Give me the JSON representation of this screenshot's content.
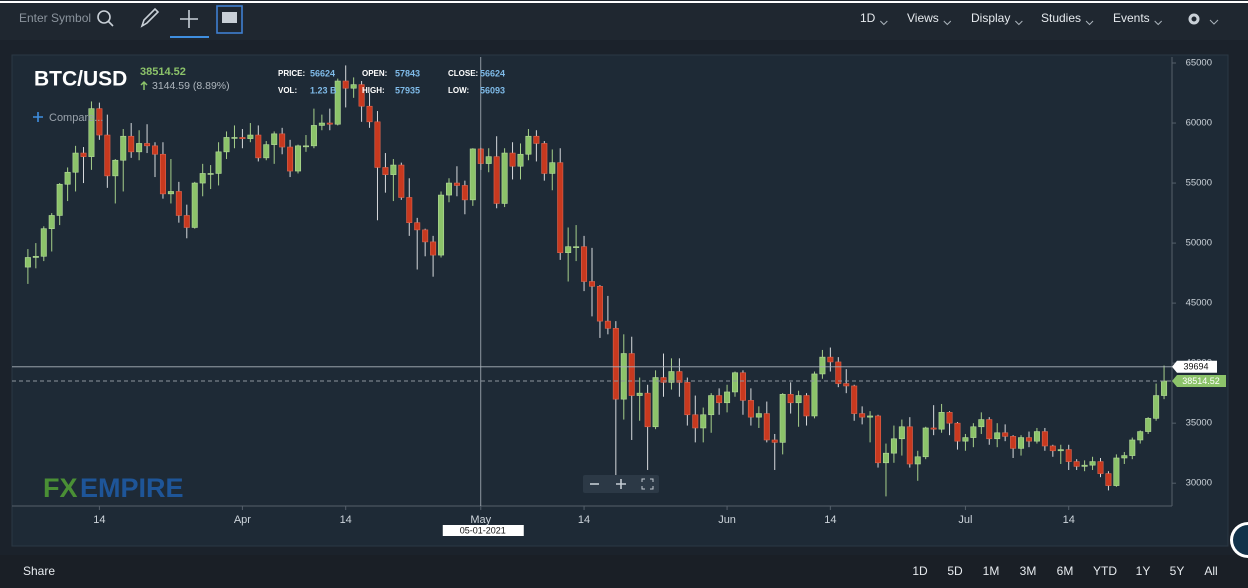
{
  "toolbar": {
    "search_placeholder": "Enter Symbol",
    "menus": [
      "1D",
      "Views",
      "Display",
      "Studies",
      "Events"
    ]
  },
  "chart_data": {
    "type": "candlestick",
    "title": "BTC/USD",
    "change": "3144.59 (8.89%)",
    "compare": "Compare...",
    "watermark": {
      "fx": "FX",
      "empire": "EMPIRE"
    },
    "readout_labels": {
      "price": "PRICE:",
      "vol": "VOL:",
      "open": "OPEN:",
      "high": "HIGH:",
      "close": "CLOSE:",
      "low": "LOW:"
    },
    "crosshair": {
      "x": "05-01-2021",
      "y": 39694,
      "volume": "1.23 B"
    },
    "colors": {
      "up": "#8cc36a",
      "down": "#c8391f",
      "last_price": "#8cc36a"
    },
    "x": [
      "03-05-2021",
      "03-06-2021",
      "03-07-2021",
      "03-08-2021",
      "03-09-2021",
      "03-10-2021",
      "03-11-2021",
      "03-12-2021",
      "03-13-2021",
      "03-14-2021",
      "03-15-2021",
      "03-16-2021",
      "03-17-2021",
      "03-18-2021",
      "03-19-2021",
      "03-20-2021",
      "03-21-2021",
      "03-22-2021",
      "03-23-2021",
      "03-24-2021",
      "03-25-2021",
      "03-26-2021",
      "03-27-2021",
      "03-28-2021",
      "03-29-2021",
      "03-30-2021",
      "03-31-2021",
      "04-01-2021",
      "04-02-2021",
      "04-03-2021",
      "04-04-2021",
      "04-05-2021",
      "04-06-2021",
      "04-07-2021",
      "04-08-2021",
      "04-09-2021",
      "04-10-2021",
      "04-11-2021",
      "04-12-2021",
      "04-13-2021",
      "04-14-2021",
      "04-15-2021",
      "04-16-2021",
      "04-17-2021",
      "04-18-2021",
      "04-19-2021",
      "04-20-2021",
      "04-21-2021",
      "04-22-2021",
      "04-23-2021",
      "04-24-2021",
      "04-25-2021",
      "04-26-2021",
      "04-27-2021",
      "04-28-2021",
      "04-29-2021",
      "04-30-2021",
      "05-01-2021",
      "05-02-2021",
      "05-03-2021",
      "05-04-2021",
      "05-05-2021",
      "05-06-2021",
      "05-07-2021",
      "05-08-2021",
      "05-09-2021",
      "05-10-2021",
      "05-11-2021",
      "05-12-2021",
      "05-13-2021",
      "05-14-2021",
      "05-15-2021",
      "05-16-2021",
      "05-17-2021",
      "05-18-2021",
      "05-19-2021",
      "05-20-2021",
      "05-21-2021",
      "05-22-2021",
      "05-23-2021",
      "05-24-2021",
      "05-25-2021",
      "05-26-2021",
      "05-27-2021",
      "05-28-2021",
      "05-29-2021",
      "05-30-2021",
      "05-31-2021",
      "06-01-2021",
      "06-02-2021",
      "06-03-2021",
      "06-04-2021",
      "06-05-2021",
      "06-06-2021",
      "06-07-2021",
      "06-08-2021",
      "06-09-2021",
      "06-10-2021",
      "06-11-2021",
      "06-12-2021",
      "06-13-2021",
      "06-14-2021",
      "06-15-2021",
      "06-16-2021",
      "06-17-2021",
      "06-18-2021",
      "06-19-2021",
      "06-20-2021",
      "06-21-2021",
      "06-22-2021",
      "06-23-2021",
      "06-24-2021",
      "06-25-2021",
      "06-26-2021",
      "06-27-2021",
      "06-28-2021",
      "06-29-2021",
      "06-30-2021",
      "07-01-2021",
      "07-02-2021",
      "07-03-2021",
      "07-04-2021",
      "07-05-2021",
      "07-06-2021",
      "07-07-2021",
      "07-08-2021",
      "07-09-2021",
      "07-10-2021",
      "07-11-2021",
      "07-12-2021",
      "07-13-2021",
      "07-14-2021",
      "07-15-2021",
      "07-16-2021",
      "07-17-2021",
      "07-18-2021",
      "07-19-2021",
      "07-20-2021",
      "07-21-2021",
      "07-22-2021",
      "07-23-2021",
      "07-24-2021",
      "07-25-2021",
      "07-26-2021"
    ],
    "open": [
      48000,
      48800,
      48900,
      51200,
      52300,
      54900,
      55900,
      57500,
      57200,
      61200,
      59000,
      55600,
      56900,
      58900,
      57600,
      58300,
      58100,
      57400,
      54100,
      54300,
      52300,
      51300,
      55000,
      55800,
      55800,
      57600,
      58800,
      58800,
      58700,
      59000,
      57100,
      58200,
      59100,
      58000,
      56000,
      58100,
      58100,
      59800,
      60000,
      59900,
      63500,
      62900,
      63200,
      61400,
      60100,
      56300,
      55700,
      56500,
      53800,
      51700,
      51100,
      50100,
      49000,
      54000,
      55000,
      54800,
      53600,
      57843,
      56624,
      57200,
      53300,
      57500,
      56400,
      57400,
      58900,
      58300,
      55800,
      56700,
      49200,
      49700,
      49700,
      46800,
      46400,
      43500,
      42900,
      37000,
      40800,
      37300,
      37500,
      34700,
      38800,
      38400,
      39300,
      38400,
      35700,
      34600,
      35700,
      37300,
      36700,
      37600,
      39200,
      36900,
      35500,
      35800,
      33600,
      33400,
      37400,
      36700,
      37300,
      35600,
      39100,
      40500,
      40100,
      38300,
      38100,
      35800,
      35500,
      35600,
      31700,
      32500,
      33700,
      34700,
      31600,
      32200,
      34600,
      34500,
      35900,
      35000,
      33500,
      33800,
      34700,
      35300,
      33700,
      34200,
      33900,
      32900,
      33800,
      33500,
      34300,
      33100,
      32700,
      32800,
      31800,
      31400,
      31500,
      31800,
      30800,
      29800,
      32100,
      32300,
      33600,
      34300,
      35400,
      37300
    ],
    "high": [
      49500,
      50000,
      51400,
      52500,
      55000,
      56300,
      58100,
      58000,
      61800,
      61700,
      60700,
      57000,
      59500,
      60000,
      59400,
      59900,
      58400,
      58400,
      57000,
      55100,
      53200,
      55100,
      56600,
      56500,
      58400,
      59300,
      59800,
      59500,
      60000,
      59800,
      58500,
      59300,
      59600,
      58600,
      58200,
      59000,
      61200,
      60700,
      61200,
      63700,
      64800,
      63800,
      63500,
      62500,
      61000,
      57500,
      57000,
      56700,
      55400,
      52100,
      51200,
      50600,
      54300,
      55400,
      56400,
      55200,
      57900,
      57935,
      57900,
      58900,
      57900,
      58400,
      58300,
      59500,
      59400,
      58500,
      57800,
      57900,
      51300,
      51500,
      50600,
      49600,
      46500,
      45600,
      43500,
      42400,
      42200,
      38800,
      38200,
      39400,
      40800,
      40400,
      40400,
      38800,
      37300,
      36300,
      37500,
      37900,
      38200,
      39300,
      39400,
      37900,
      36400,
      36800,
      34100,
      37500,
      38400,
      37700,
      37500,
      39300,
      41100,
      41300,
      40500,
      39500,
      38200,
      36400,
      36000,
      35700,
      33300,
      34800,
      35300,
      35500,
      32700,
      34700,
      36500,
      36600,
      36000,
      35100,
      34100,
      35000,
      35900,
      35500,
      35000,
      34900,
      34000,
      34000,
      34300,
      34600,
      34600,
      33200,
      33200,
      33200,
      32000,
      31900,
      32200,
      32100,
      31000,
      32400,
      32600,
      33800,
      34400,
      35500,
      38300,
      39800
    ],
    "low": [
      46600,
      47900,
      48500,
      49300,
      51500,
      53500,
      54300,
      55000,
      56100,
      58600,
      54600,
      53300,
      54300,
      57100,
      56900,
      57500,
      55500,
      53700,
      53300,
      51700,
      50400,
      51200,
      53900,
      54500,
      54800,
      57000,
      57900,
      57900,
      58400,
      56800,
      56900,
      56600,
      57400,
      55500,
      55800,
      57600,
      57900,
      59400,
      59400,
      59800,
      61300,
      62100,
      60100,
      59600,
      51900,
      54200,
      53500,
      53600,
      50600,
      47800,
      48900,
      47200,
      48800,
      53400,
      53900,
      52400,
      53100,
      56093,
      55900,
      52900,
      53000,
      55300,
      55300,
      56900,
      56800,
      55200,
      54400,
      48600,
      46800,
      48500,
      46000,
      43900,
      42100,
      42400,
      30100,
      35300,
      33600,
      35200,
      31100,
      34500,
      37200,
      37800,
      37200,
      34800,
      33400,
      33400,
      34200,
      35700,
      35900,
      37200,
      35700,
      34800,
      34600,
      33400,
      31100,
      32400,
      35800,
      34700,
      34800,
      35400,
      38700,
      39300,
      38000,
      37500,
      35200,
      34900,
      33400,
      31300,
      28900,
      31700,
      32300,
      31300,
      30200,
      32000,
      34000,
      34200,
      34000,
      32800,
      32700,
      33000,
      34100,
      33200,
      33000,
      33500,
      32100,
      32300,
      33000,
      33300,
      32700,
      32200,
      31600,
      31100,
      31100,
      31000,
      31100,
      30500,
      29400,
      29700,
      31600,
      32000,
      33300,
      34100,
      35200,
      37000
    ],
    "close": [
      48800,
      48900,
      51200,
      52300,
      54900,
      55900,
      57500,
      57200,
      61200,
      59000,
      55600,
      56900,
      58900,
      57600,
      58300,
      58100,
      57400,
      54100,
      54300,
      52300,
      51300,
      55000,
      55800,
      55800,
      57600,
      58800,
      58800,
      58700,
      59000,
      57100,
      58200,
      59100,
      58000,
      56000,
      58100,
      58100,
      59800,
      60000,
      59900,
      63500,
      62900,
      63200,
      61400,
      60100,
      56300,
      55700,
      56500,
      53800,
      51700,
      51100,
      50100,
      49000,
      54000,
      55000,
      54800,
      53600,
      57843,
      56624,
      57200,
      53300,
      57500,
      56400,
      57400,
      58900,
      58300,
      55800,
      56700,
      49200,
      49700,
      49700,
      46800,
      46400,
      43500,
      42900,
      37000,
      40800,
      37300,
      37500,
      34700,
      38800,
      38400,
      39300,
      38400,
      35700,
      34600,
      35700,
      37300,
      36700,
      37600,
      39200,
      36900,
      35500,
      35800,
      33600,
      33400,
      37400,
      36700,
      37300,
      35600,
      39100,
      40500,
      40100,
      38300,
      38100,
      35800,
      35500,
      35600,
      31700,
      32500,
      33700,
      34700,
      31600,
      32200,
      34600,
      34500,
      35900,
      35000,
      33500,
      33800,
      34700,
      35300,
      33700,
      34200,
      33900,
      32900,
      33800,
      33500,
      34300,
      33100,
      32700,
      32800,
      31800,
      31400,
      31500,
      31800,
      30800,
      29800,
      32100,
      32300,
      33600,
      34300,
      35400,
      37300,
      38514.52
    ],
    "xlim": [
      "03-03-2021",
      "07-27-2021"
    ],
    "xticks": [
      {
        "value": "03-14-2021",
        "label": "14"
      },
      {
        "value": "04-01-2021",
        "label": "Apr"
      },
      {
        "value": "04-14-2021",
        "label": "14"
      },
      {
        "value": "05-01-2021",
        "label": "May"
      },
      {
        "value": "05-14-2021",
        "label": "14"
      },
      {
        "value": "06-01-2021",
        "label": "Jun"
      },
      {
        "value": "06-14-2021",
        "label": "14"
      },
      {
        "value": "07-01-2021",
        "label": "Jul"
      },
      {
        "value": "07-14-2021",
        "label": "14"
      }
    ],
    "ylim": [
      28100,
      65500
    ],
    "yticks": [
      30000,
      35000,
      40000,
      45000,
      50000,
      55000,
      60000,
      65000
    ],
    "grid": false
  },
  "footer": {
    "share": "Share",
    "ranges": [
      "1D",
      "5D",
      "1M",
      "3M",
      "6M",
      "YTD",
      "1Y",
      "5Y",
      "All"
    ]
  }
}
